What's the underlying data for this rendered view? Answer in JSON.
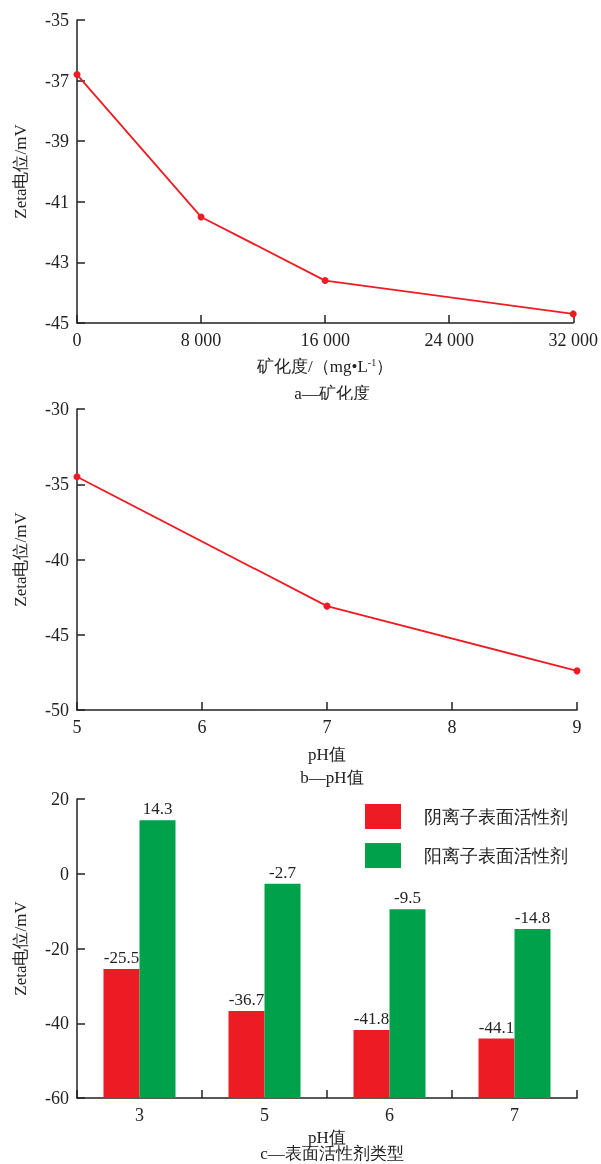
{
  "chart_data": [
    {
      "type": "line",
      "title": "a—矿化度",
      "xlabel": "矿化度/（mg•L$^{-1}$）",
      "ylabel": "Zeta电位/mV",
      "x": [
        0,
        8000,
        16000,
        32000
      ],
      "series": [
        {
          "color": "#ed1c24",
          "values": [
            -36.8,
            -41.5,
            -43.6,
            -44.7
          ]
        }
      ],
      "xlim": [
        0,
        32000
      ],
      "xticks": [
        0,
        {
          "value": 8000,
          "label": "8 000"
        },
        {
          "value": 16000,
          "label": "16 000"
        },
        {
          "value": 24000,
          "label": "24 000"
        },
        {
          "value": 32000,
          "label": "32 000"
        }
      ],
      "ylim": [
        -45,
        -35
      ],
      "yticks": [
        -45,
        -43,
        -41,
        -39,
        -37,
        -35
      ],
      "grid": false,
      "marker": "circle",
      "line_style": "solid",
      "legend": false
    },
    {
      "type": "line",
      "title": "b—pH值",
      "xlabel": "pH值",
      "ylabel": "Zeta电位/mV",
      "x": [
        5,
        7,
        9
      ],
      "series": [
        {
          "color": "#ed1c24",
          "values": [
            -34.5,
            -43.1,
            -47.4
          ]
        }
      ],
      "xlim": [
        5,
        9
      ],
      "xticks": [
        5,
        6,
        7,
        8,
        9
      ],
      "ylim": [
        -50,
        -30
      ],
      "yticks": [
        -50,
        -45,
        -40,
        -35,
        -30
      ],
      "grid": false,
      "marker": "circle",
      "line_style": "solid",
      "legend": false
    },
    {
      "type": "bar",
      "title": "c—表面活性剂类型",
      "xlabel": "pH值",
      "ylabel": "Zeta电位/mV",
      "categories": [
        "3",
        "5",
        "6",
        "7"
      ],
      "series": [
        {
          "name": "阴离子表面活性剂",
          "color": "#ed1c24",
          "base": [
            -60,
            -60,
            -60,
            -60
          ],
          "values": [
            34.5,
            23.3,
            18.2,
            15.9
          ],
          "value_labels": [
            "-25.5",
            "-36.7",
            "-41.8",
            "-44.1"
          ]
        },
        {
          "name": "阳离子表面活性剂",
          "color": "#00a14b",
          "base": [
            -60,
            -60,
            -60,
            -60
          ],
          "values": [
            74.3,
            57.3,
            50.5,
            45.2
          ],
          "value_labels": [
            "14.3",
            "-2.7",
            "-9.5",
            "-14.8"
          ]
        }
      ],
      "ylim": [
        -60,
        20
      ],
      "yticks": [
        -60,
        -40,
        -20,
        0,
        20
      ],
      "grid": false,
      "legend": "top right"
    }
  ]
}
